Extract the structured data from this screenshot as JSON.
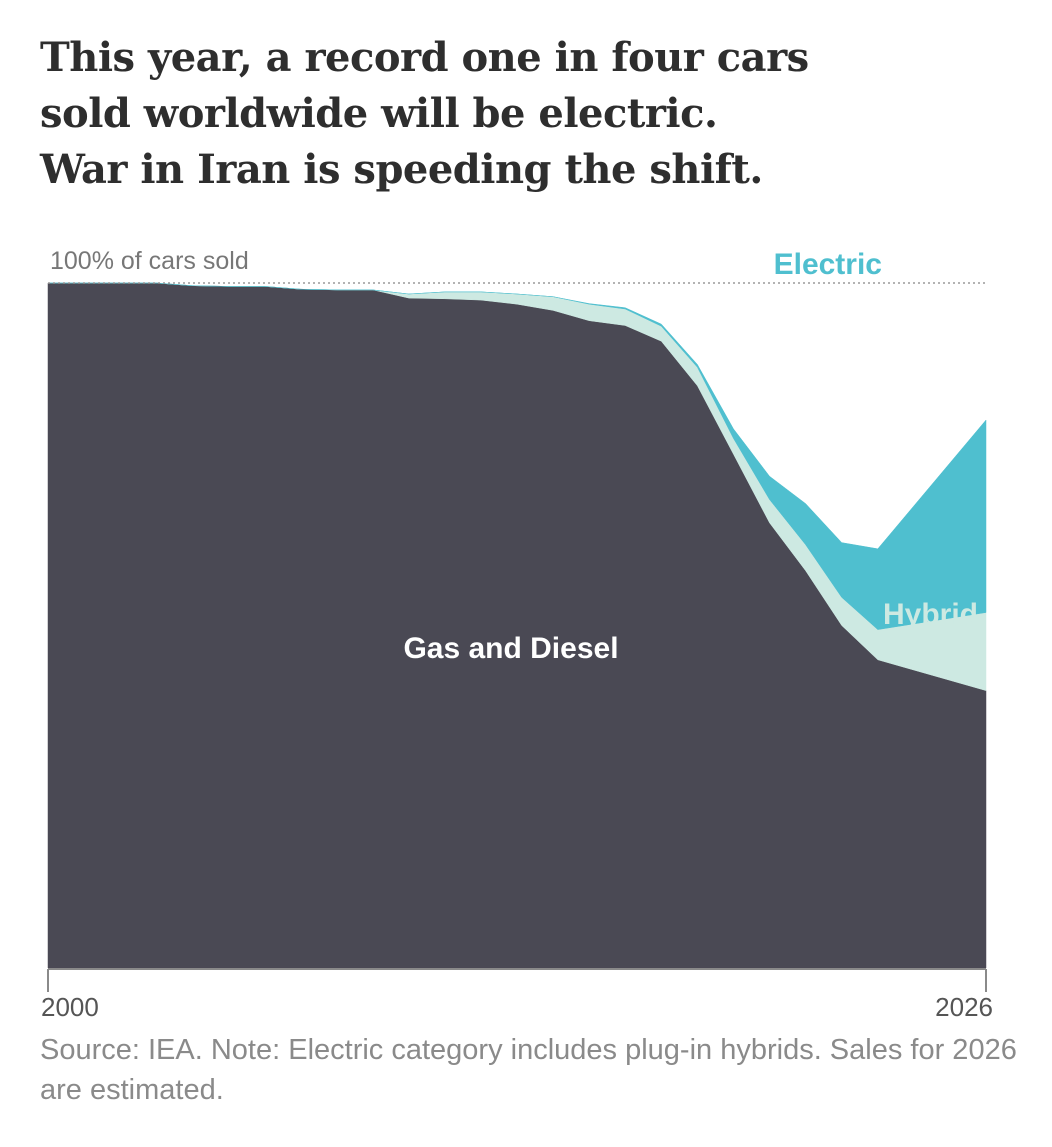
{
  "headline": {
    "line1": "This year, a record one in four cars",
    "line2": "sold worldwide will be electric.",
    "line3": "War in Iran is speeding the shift."
  },
  "chart_data": {
    "type": "area",
    "stacked": true,
    "normalized": true,
    "top_label": "100% of cars sold",
    "x_ticks": [
      "2000",
      "2026"
    ],
    "xlim": [
      2000,
      2026
    ],
    "ylim": [
      0,
      100
    ],
    "x": [
      2000,
      2001,
      2002,
      2003,
      2004,
      2005,
      2006,
      2007,
      2008,
      2009,
      2010,
      2011,
      2012,
      2013,
      2014,
      2015,
      2016,
      2017,
      2018,
      2019,
      2020,
      2021,
      2022,
      2023,
      2024,
      2025,
      2026
    ],
    "series": [
      {
        "name": "Gas and Diesel",
        "values": [
          100,
          100,
          100,
          100.0,
          99.6,
          99.5,
          99.5,
          99.1,
          99.0,
          99.0,
          97.8,
          97.7,
          97.5,
          96.9,
          96.0,
          94.5,
          93.8,
          91.5,
          85.0,
          75.0,
          65.0,
          58.0,
          50.0,
          45.0,
          40.5
        ],
        "x": [
          2000,
          2001,
          2002,
          2003,
          2004,
          2005,
          2006,
          2007,
          2008,
          2009,
          2010,
          2011,
          2012,
          2013,
          2014,
          2015,
          2016,
          2017,
          2018,
          2019,
          2020,
          2021,
          2022,
          2023,
          2026
        ],
        "color": "#4a4954"
      },
      {
        "name": "Hybrid",
        "values": [
          0,
          0,
          0,
          0,
          0,
          0,
          0,
          0,
          0,
          0,
          0.6,
          1.0,
          1.2,
          1.5,
          2.0,
          2.4,
          2.4,
          2.2,
          2.7,
          2.3,
          3.4,
          3.8,
          4.1,
          4.4,
          11.4
        ],
        "x": [
          2000,
          2001,
          2002,
          2003,
          2004,
          2005,
          2006,
          2007,
          2008,
          2009,
          2010,
          2011,
          2012,
          2013,
          2014,
          2015,
          2016,
          2017,
          2018,
          2019,
          2020,
          2021,
          2022,
          2023,
          2026
        ],
        "color": "#cde9e2"
      },
      {
        "name": "Electric",
        "values": [
          0,
          0,
          0,
          0,
          0,
          0,
          0,
          0,
          0,
          0,
          0,
          0,
          0,
          0,
          0,
          0.1,
          0.2,
          0.3,
          0.4,
          1.4,
          3.4,
          6.0,
          8.0,
          11.8,
          28.1
        ],
        "x": [
          2000,
          2001,
          2002,
          2003,
          2004,
          2005,
          2006,
          2007,
          2008,
          2009,
          2010,
          2011,
          2012,
          2013,
          2014,
          2015,
          2016,
          2017,
          2018,
          2019,
          2020,
          2021,
          2022,
          2023,
          2026
        ],
        "color": "#4fbfcf"
      }
    ]
  },
  "footer": {
    "note": "Source: IEA.  Note: Electric category includes plug-in hybrids. Sales for 2026 are estimated."
  }
}
